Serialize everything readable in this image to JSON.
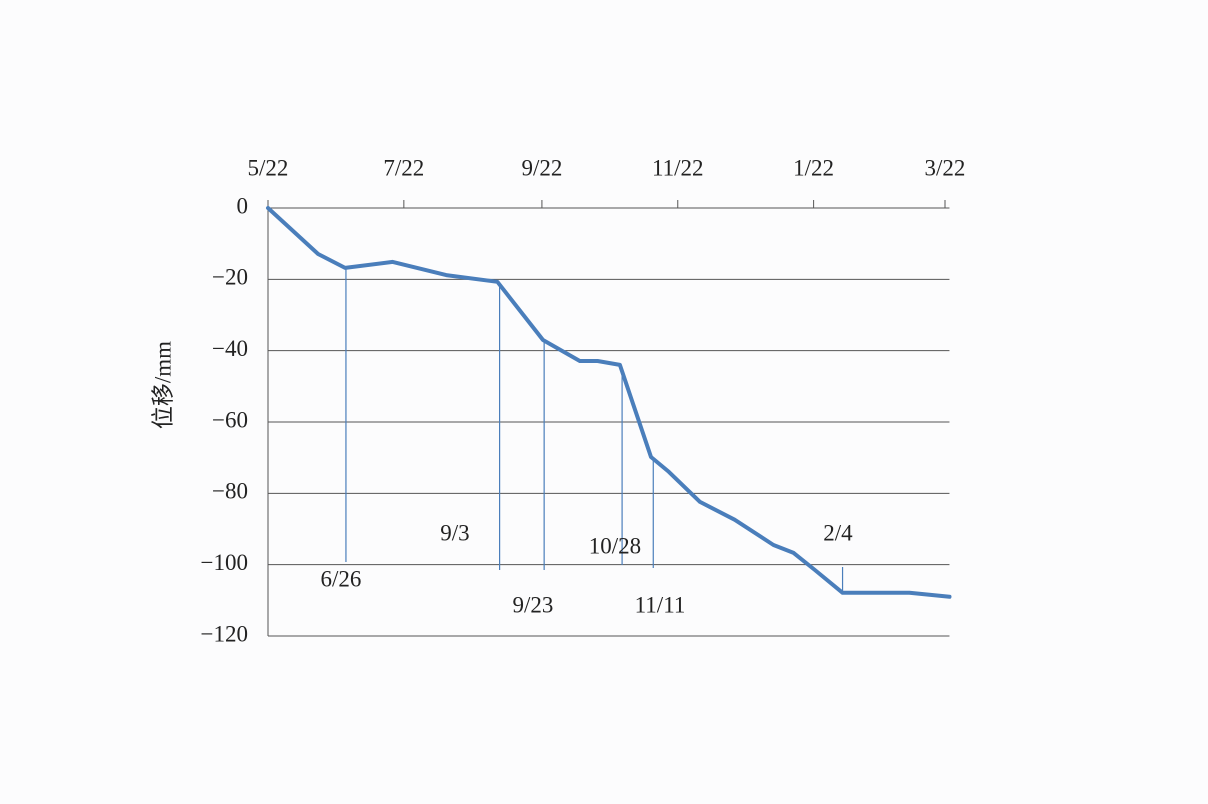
{
  "chart_data": {
    "type": "line",
    "y_label": "位移/mm",
    "x": [
      0,
      22.5,
      34.6,
      56,
      80,
      103,
      123.5,
      140,
      148,
      158,
      172,
      180,
      194,
      209.5,
      227,
      236,
      245.6,
      258,
      288,
      306
    ],
    "values": [
      0,
      -12.9,
      -16.8,
      -15.1,
      -18.8,
      -20.7,
      -37,
      -42.9,
      -42.9,
      -44,
      -69.8,
      -74,
      -82.4,
      -87.4,
      -94.5,
      -96.7,
      -101.5,
      -107.9,
      -107.9,
      -109
    ],
    "color": "#4a7ebb",
    "xlim": [
      0,
      306
    ],
    "xticks": [
      {
        "value": 0,
        "label": "5/22"
      },
      {
        "value": 61,
        "label": "7/22"
      },
      {
        "value": 123,
        "label": "9/22"
      },
      {
        "value": 184,
        "label": "11/22"
      },
      {
        "value": 245,
        "label": "1/22"
      },
      {
        "value": 304,
        "label": "3/22"
      }
    ],
    "ylim": [
      -120,
      0
    ],
    "yticks": [
      0,
      {
        "value": -20,
        "label": "−20"
      },
      {
        "value": -40,
        "label": "−40"
      },
      {
        "value": -60,
        "label": "−60"
      },
      {
        "value": -80,
        "label": "−80"
      },
      {
        "value": -100,
        "label": "−100"
      },
      {
        "value": -120,
        "label": "−120"
      }
    ],
    "grid": true,
    "annotations": [
      {
        "label": "6/26",
        "x": 35
      },
      {
        "label": "9/3",
        "x": 104
      },
      {
        "label": "9/23",
        "x": 124
      },
      {
        "label": "10/28",
        "x": 159
      },
      {
        "label": "11/11",
        "x": 173
      },
      {
        "label": "2/4",
        "x": 258
      }
    ]
  }
}
